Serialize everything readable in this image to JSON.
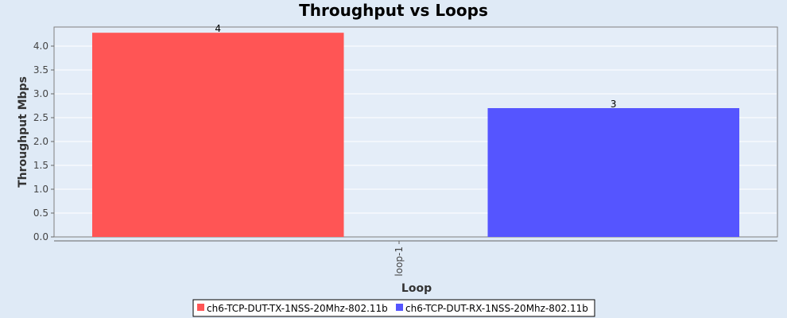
{
  "chart_data": {
    "type": "bar",
    "title": "Throughput vs Loops",
    "xlabel": "Loop",
    "ylabel": "Throughput Mbps",
    "categories": [
      "loop-1"
    ],
    "ylim": [
      0,
      4.4
    ],
    "yticks": [
      0.0,
      0.5,
      1.0,
      1.5,
      2.0,
      2.5,
      3.0,
      3.5,
      4.0
    ],
    "ytick_labels": [
      "0.0",
      "0.5",
      "1.0",
      "1.5",
      "2.0",
      "2.5",
      "3.0",
      "3.5",
      "4.0"
    ],
    "grid": true,
    "legend_position": "bottom-center",
    "series": [
      {
        "name": "ch6-TCP-DUT-TX-1NSS-20Mhz-802.11b",
        "values": [
          4.28
        ],
        "data_labels": [
          "4"
        ],
        "color": "#ff5555"
      },
      {
        "name": "ch6-TCP-DUT-RX-1NSS-20Mhz-802.11b",
        "values": [
          2.7
        ],
        "data_labels": [
          "3"
        ],
        "color": "#5555ff"
      }
    ]
  },
  "colors": {
    "page_background": "#dfeaf6",
    "plot_background": "#e4edf8",
    "plot_border": "#808080",
    "gridline": "#ffffff"
  }
}
